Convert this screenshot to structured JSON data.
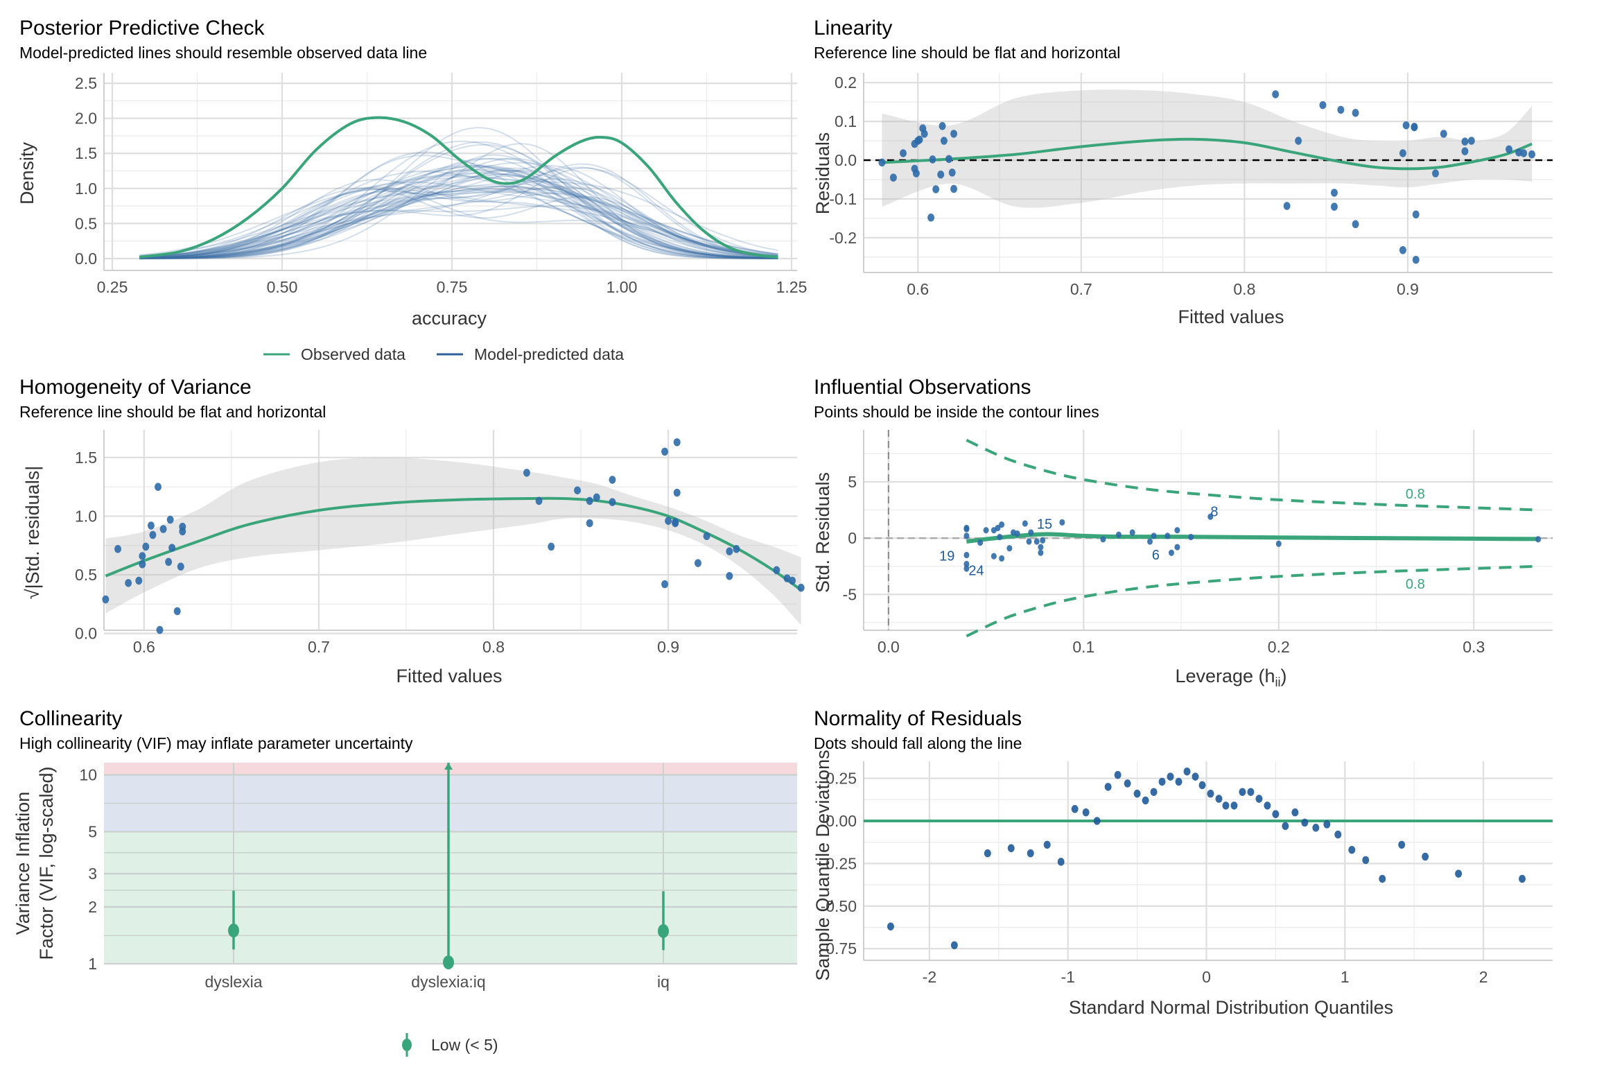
{
  "figure": {
    "colors": {
      "observed": "#3aa57a",
      "predicted": "#3a6ea5",
      "points": "#2e6aa8",
      "ribbon": "#d9d9d9",
      "vif_low": "#dff0e6",
      "vif_moderate": "#dee4ef",
      "vif_high": "#f5d9dc"
    }
  },
  "chart_data": [
    {
      "id": "ppc",
      "type": "line",
      "title": "Posterior Predictive Check",
      "subtitle": "Model-predicted lines should resemble observed data line",
      "xlabel": "accuracy",
      "ylabel": "Density",
      "xlim": [
        0.25,
        1.25
      ],
      "ylim": [
        0,
        2.6
      ],
      "xticks": [
        "0.25",
        "0.50",
        "0.75",
        "1.00",
        "1.25"
      ],
      "yticks": [
        "0.0",
        "0.5",
        "1.0",
        "1.5",
        "2.0",
        "2.5"
      ],
      "legend": {
        "position": "bottom",
        "entries": [
          "Observed data",
          "Model-predicted data"
        ]
      },
      "series": [
        {
          "name": "Observed data",
          "x": [
            0.29,
            0.35,
            0.4,
            0.45,
            0.5,
            0.55,
            0.6,
            0.64,
            0.68,
            0.72,
            0.76,
            0.8,
            0.83,
            0.86,
            0.9,
            0.94,
            0.97,
            1.0,
            1.04,
            1.08,
            1.12,
            1.16,
            1.2,
            1.23
          ],
          "y": [
            0.02,
            0.1,
            0.28,
            0.58,
            1.0,
            1.55,
            1.92,
            2.01,
            1.95,
            1.75,
            1.42,
            1.15,
            1.07,
            1.15,
            1.45,
            1.67,
            1.73,
            1.65,
            1.3,
            0.8,
            0.4,
            0.15,
            0.05,
            0.02
          ]
        }
      ],
      "predicted_draws": 50
    },
    {
      "id": "linearity",
      "type": "scatter",
      "title": "Linearity",
      "subtitle": "Reference line should be flat and horizontal",
      "xlabel": "Fitted values",
      "ylabel": "Residuals",
      "xlim": [
        0.56,
        0.99
      ],
      "ylim": [
        -0.27,
        0.22
      ],
      "xticks": [
        "0.6",
        "0.7",
        "0.8",
        "0.9"
      ],
      "yticks": [
        "-0.2",
        "-0.1",
        "0.0",
        "0.1",
        "0.2"
      ],
      "points": [
        [
          0.578,
          -0.006
        ],
        [
          0.585,
          -0.045
        ],
        [
          0.591,
          0.018
        ],
        [
          0.598,
          -0.022
        ],
        [
          0.598,
          0.042
        ],
        [
          0.599,
          -0.034
        ],
        [
          0.6,
          0.05
        ],
        [
          0.601,
          0.053
        ],
        [
          0.603,
          0.082
        ],
        [
          0.604,
          0.068
        ],
        [
          0.608,
          -0.148
        ],
        [
          0.609,
          0.002
        ],
        [
          0.611,
          -0.075
        ],
        [
          0.614,
          -0.037
        ],
        [
          0.615,
          0.088
        ],
        [
          0.616,
          0.05
        ],
        [
          0.619,
          0.003
        ],
        [
          0.621,
          -0.032
        ],
        [
          0.622,
          -0.074
        ],
        [
          0.622,
          0.068
        ],
        [
          0.819,
          0.17
        ],
        [
          0.826,
          -0.118
        ],
        [
          0.833,
          0.05
        ],
        [
          0.848,
          0.142
        ],
        [
          0.855,
          -0.084
        ],
        [
          0.855,
          -0.12
        ],
        [
          0.859,
          0.13
        ],
        [
          0.868,
          -0.165
        ],
        [
          0.868,
          0.122
        ],
        [
          0.897,
          -0.232
        ],
        [
          0.897,
          0.018
        ],
        [
          0.899,
          0.09
        ],
        [
          0.904,
          0.085
        ],
        [
          0.904,
          0.086
        ],
        [
          0.905,
          -0.14
        ],
        [
          0.905,
          -0.257
        ],
        [
          0.917,
          -0.034
        ],
        [
          0.922,
          0.068
        ],
        [
          0.935,
          0.048
        ],
        [
          0.935,
          0.023
        ],
        [
          0.939,
          0.05
        ],
        [
          0.962,
          0.028
        ],
        [
          0.968,
          0.02
        ],
        [
          0.971,
          0.018
        ],
        [
          0.976,
          0.015
        ]
      ],
      "smooth": {
        "x": [
          0.578,
          0.62,
          0.66,
          0.7,
          0.74,
          0.77,
          0.8,
          0.83,
          0.86,
          0.88,
          0.9,
          0.92,
          0.94,
          0.96,
          0.976
        ],
        "y": [
          -0.006,
          0.003,
          0.015,
          0.035,
          0.05,
          0.054,
          0.045,
          0.02,
          -0.005,
          -0.018,
          -0.022,
          -0.018,
          -0.004,
          0.015,
          0.042
        ]
      },
      "band_upper": [
        0.12,
        0.09,
        0.16,
        0.18,
        0.18,
        0.17,
        0.15,
        0.1,
        0.06,
        0.05,
        0.05,
        0.06,
        0.05,
        0.07,
        0.14
      ],
      "band_lower": [
        -0.12,
        -0.06,
        -0.12,
        -0.11,
        -0.08,
        -0.065,
        -0.06,
        -0.06,
        -0.06,
        -0.065,
        -0.07,
        -0.06,
        -0.05,
        -0.05,
        -0.055
      ],
      "reference_line": 0
    },
    {
      "id": "homogeneity",
      "type": "scatter",
      "title": "Homogeneity of Variance",
      "subtitle": "Reference line should be flat and horizontal",
      "xlabel": "Fitted values",
      "ylabel": "√|Std. residuals|",
      "xlim": [
        0.56,
        0.99
      ],
      "ylim": [
        -0.02,
        1.7
      ],
      "xticks": [
        "0.6",
        "0.7",
        "0.8",
        "0.9"
      ],
      "yticks": [
        "0.0",
        "0.5",
        "1.0",
        "1.5"
      ],
      "points": [
        [
          0.578,
          0.29
        ],
        [
          0.585,
          0.72
        ],
        [
          0.591,
          0.43
        ],
        [
          0.597,
          0.45
        ],
        [
          0.599,
          0.66
        ],
        [
          0.599,
          0.59
        ],
        [
          0.601,
          0.74
        ],
        [
          0.604,
          0.92
        ],
        [
          0.605,
          0.84
        ],
        [
          0.608,
          1.25
        ],
        [
          0.609,
          0.03
        ],
        [
          0.611,
          0.89
        ],
        [
          0.614,
          0.61
        ],
        [
          0.615,
          0.97
        ],
        [
          0.616,
          0.73
        ],
        [
          0.619,
          0.19
        ],
        [
          0.621,
          0.57
        ],
        [
          0.622,
          0.91
        ],
        [
          0.622,
          0.87
        ],
        [
          0.819,
          1.37
        ],
        [
          0.826,
          1.13
        ],
        [
          0.833,
          0.74
        ],
        [
          0.848,
          1.22
        ],
        [
          0.855,
          0.94
        ],
        [
          0.855,
          1.13
        ],
        [
          0.859,
          1.16
        ],
        [
          0.868,
          1.12
        ],
        [
          0.868,
          1.31
        ],
        [
          0.898,
          0.42
        ],
        [
          0.898,
          1.55
        ],
        [
          0.9,
          0.96
        ],
        [
          0.904,
          0.95
        ],
        [
          0.904,
          0.94
        ],
        [
          0.905,
          1.2
        ],
        [
          0.905,
          1.63
        ],
        [
          0.917,
          0.6
        ],
        [
          0.922,
          0.83
        ],
        [
          0.935,
          0.7
        ],
        [
          0.935,
          0.49
        ],
        [
          0.939,
          0.72
        ],
        [
          0.962,
          0.54
        ],
        [
          0.968,
          0.47
        ],
        [
          0.971,
          0.45
        ],
        [
          0.976,
          0.39
        ]
      ],
      "smooth": {
        "x": [
          0.578,
          0.6,
          0.63,
          0.66,
          0.7,
          0.74,
          0.78,
          0.82,
          0.84,
          0.86,
          0.88,
          0.9,
          0.92,
          0.94,
          0.96,
          0.976
        ],
        "y": [
          0.49,
          0.62,
          0.78,
          0.93,
          1.05,
          1.11,
          1.14,
          1.15,
          1.15,
          1.13,
          1.08,
          1.0,
          0.87,
          0.72,
          0.54,
          0.37
        ]
      },
      "band_upper": [
        0.81,
        0.87,
        1.05,
        1.3,
        1.46,
        1.5,
        1.46,
        1.38,
        1.33,
        1.27,
        1.17,
        1.08,
        0.97,
        0.84,
        0.74,
        0.65
      ],
      "band_lower": [
        0.17,
        0.35,
        0.55,
        0.65,
        0.71,
        0.77,
        0.85,
        0.93,
        0.98,
        0.98,
        0.95,
        0.88,
        0.76,
        0.58,
        0.33,
        0.07
      ]
    },
    {
      "id": "influential",
      "type": "scatter",
      "title": "Influential Observations",
      "subtitle": "Points should be inside the contour lines",
      "xlabel": "Leverage (h",
      "xlabel_sub": "ii",
      "xlabel_end": ")",
      "ylabel": "Std. Residuals",
      "xlim": [
        -0.017,
        0.35
      ],
      "ylim": [
        -9.6,
        9.8
      ],
      "xticks": [
        "0.0",
        "0.1",
        "0.2",
        "0.3"
      ],
      "yticks": [
        "-5",
        "0",
        "5"
      ],
      "points": [
        [
          0.04,
          0.9
        ],
        [
          0.04,
          0.8
        ],
        [
          0.04,
          0.2
        ],
        [
          0.04,
          -1.5
        ],
        [
          0.04,
          -2.3
        ],
        [
          0.04,
          -2.7
        ],
        [
          0.047,
          -0.4
        ],
        [
          0.05,
          0.7
        ],
        [
          0.054,
          -1.6
        ],
        [
          0.054,
          0.7
        ],
        [
          0.056,
          0.9
        ],
        [
          0.057,
          0.1
        ],
        [
          0.058,
          1.2
        ],
        [
          0.058,
          -1.8
        ],
        [
          0.062,
          -0.9
        ],
        [
          0.064,
          0.5
        ],
        [
          0.066,
          0.4
        ],
        [
          0.07,
          1.3
        ],
        [
          0.072,
          -0.3
        ],
        [
          0.073,
          0.5
        ],
        [
          0.076,
          -0.3
        ],
        [
          0.078,
          -0.8
        ],
        [
          0.078,
          -1.3
        ],
        [
          0.079,
          -0.2
        ],
        [
          0.089,
          1.4
        ],
        [
          0.11,
          -0.1
        ],
        [
          0.118,
          0.3
        ],
        [
          0.125,
          0.5
        ],
        [
          0.134,
          -0.3
        ],
        [
          0.136,
          0.2
        ],
        [
          0.143,
          0.2
        ],
        [
          0.145,
          -1.3
        ],
        [
          0.148,
          -0.8
        ],
        [
          0.148,
          0.7
        ],
        [
          0.155,
          0.1
        ],
        [
          0.165,
          1.9
        ],
        [
          0.2,
          -0.5
        ],
        [
          0.333,
          -0.1
        ]
      ],
      "labels": [
        {
          "text": "8",
          "x": 0.167,
          "y": 1.95
        },
        {
          "text": "15",
          "x": 0.08,
          "y": 0.85
        },
        {
          "text": "19",
          "x": 0.03,
          "y": -2.0
        },
        {
          "text": "24",
          "x": 0.045,
          "y": -3.3
        },
        {
          "text": "6",
          "x": 0.137,
          "y": -1.9
        }
      ],
      "smooth": {
        "x": [
          0.04,
          0.06,
          0.08,
          0.1,
          0.12,
          0.15,
          0.2,
          0.25,
          0.3,
          0.333
        ],
        "y": [
          -0.3,
          0.1,
          0.35,
          0.2,
          0.12,
          0.12,
          0.05,
          0.0,
          -0.05,
          -0.08
        ]
      },
      "contour_upper": {
        "x": [
          0.04,
          0.06,
          0.08,
          0.1,
          0.13,
          0.16,
          0.2,
          0.25,
          0.3,
          0.333
        ],
        "y": [
          8.7,
          7.1,
          6.0,
          5.2,
          4.4,
          3.9,
          3.4,
          3.0,
          2.7,
          2.5
        ]
      },
      "contour_lower": {
        "x": [
          0.04,
          0.06,
          0.08,
          0.1,
          0.13,
          0.16,
          0.2,
          0.25,
          0.3,
          0.333
        ],
        "y": [
          -8.7,
          -7.1,
          -6.0,
          -5.2,
          -4.4,
          -3.9,
          -3.4,
          -3.0,
          -2.7,
          -2.5
        ]
      },
      "contour_label": "0.8"
    },
    {
      "id": "collinearity",
      "type": "scatter",
      "title": "Collinearity",
      "subtitle": "High collinearity (VIF) may inflate parameter uncertainty",
      "xlabel": "",
      "ylabel": [
        "Variance Inflation",
        "Factor (VIF, log-scaled)"
      ],
      "ylim": [
        1,
        11.6
      ],
      "yscale": "log",
      "categories": [
        "dyslexia",
        "dyslexia:iq",
        "iq"
      ],
      "yticks": [
        "1",
        "2",
        "3",
        "5",
        "10"
      ],
      "values": [
        1.5,
        1.0,
        1.49
      ],
      "ci_low": [
        1.19,
        1.0,
        1.18
      ],
      "ci_high": [
        2.44,
        11.6,
        2.42
      ],
      "zones": [
        {
          "name": "Low",
          "from": 1,
          "to": 5
        },
        {
          "name": "Moderate",
          "from": 5,
          "to": 10
        },
        {
          "name": "High",
          "from": 10,
          "to": 11.6
        }
      ],
      "legend": {
        "position": "bottom",
        "entries": [
          "Low (< 5)"
        ]
      }
    },
    {
      "id": "normality",
      "type": "scatter",
      "title": "Normality of Residuals",
      "subtitle": "Dots should fall along the line",
      "xlabel": "Standard Normal Distribution Quantiles",
      "ylabel": "Sample Quantile Deviations",
      "xlim": [
        -2.5,
        2.5
      ],
      "ylim": [
        -0.79,
        0.35
      ],
      "xticks": [
        "-2",
        "-1",
        "0",
        "1",
        "2"
      ],
      "yticks": [
        "-0.75",
        "-0.50",
        "-0.25",
        "0.00",
        "0.25"
      ],
      "points": [
        [
          -2.28,
          -0.62
        ],
        [
          -1.82,
          -0.73
        ],
        [
          -1.58,
          -0.19
        ],
        [
          -1.41,
          -0.16
        ],
        [
          -1.27,
          -0.19
        ],
        [
          -1.15,
          -0.14
        ],
        [
          -1.05,
          -0.24
        ],
        [
          -0.95,
          0.07
        ],
        [
          -0.87,
          0.05
        ],
        [
          -0.79,
          0.0
        ],
        [
          -0.71,
          0.2
        ],
        [
          -0.64,
          0.27
        ],
        [
          -0.57,
          0.22
        ],
        [
          -0.5,
          0.16
        ],
        [
          -0.44,
          0.12
        ],
        [
          -0.38,
          0.17
        ],
        [
          -0.32,
          0.23
        ],
        [
          -0.26,
          0.26
        ],
        [
          -0.2,
          0.23
        ],
        [
          -0.14,
          0.29
        ],
        [
          -0.08,
          0.26
        ],
        [
          -0.03,
          0.21
        ],
        [
          0.03,
          0.16
        ],
        [
          0.09,
          0.13
        ],
        [
          0.14,
          0.09
        ],
        [
          0.2,
          0.09
        ],
        [
          0.26,
          0.17
        ],
        [
          0.32,
          0.17
        ],
        [
          0.38,
          0.13
        ],
        [
          0.44,
          0.09
        ],
        [
          0.5,
          0.04
        ],
        [
          0.57,
          -0.03
        ],
        [
          0.64,
          0.05
        ],
        [
          0.71,
          -0.01
        ],
        [
          0.79,
          -0.04
        ],
        [
          0.87,
          -0.02
        ],
        [
          0.95,
          -0.08
        ],
        [
          1.05,
          -0.17
        ],
        [
          1.15,
          -0.23
        ],
        [
          1.27,
          -0.34
        ],
        [
          1.41,
          -0.14
        ],
        [
          1.58,
          -0.21
        ],
        [
          1.82,
          -0.31
        ],
        [
          2.28,
          -0.34
        ]
      ],
      "reference_line": 0
    }
  ]
}
